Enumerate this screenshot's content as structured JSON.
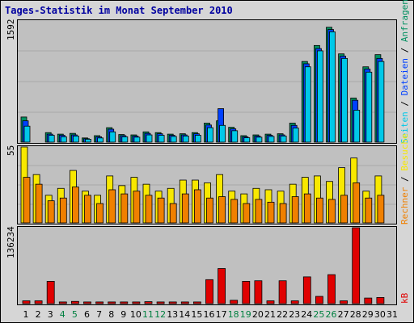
{
  "colors": {
    "frame_bg": "#d6d6d6",
    "plot_bg": "#c0c0c0",
    "grid": "#a8a8a8",
    "title": "#0000a0",
    "hits": "#009060",
    "files": "#0040ff",
    "pages": "#00c8e8",
    "visits": "#f8e800",
    "sites": "#f08000",
    "kbytes": "#e00000",
    "weekend": "#008040",
    "weekday": "#000000"
  },
  "chart_data": {
    "type": "bar",
    "title": "Tages-Statistik im Monat September 2010",
    "categories": [
      "1",
      "2",
      "3",
      "4",
      "5",
      "6",
      "7",
      "8",
      "9",
      "10",
      "11",
      "12",
      "13",
      "14",
      "15",
      "16",
      "17",
      "18",
      "19",
      "20",
      "21",
      "22",
      "23",
      "24",
      "25",
      "26",
      "27",
      "28",
      "29",
      "30",
      "31"
    ],
    "weekend_days": [
      "4",
      "5",
      "11",
      "12",
      "18",
      "19",
      "25",
      "26"
    ],
    "panels": [
      {
        "id": "top",
        "ymax_label": "1592",
        "ylim": [
          0,
          1592
        ],
        "gridlines": 3,
        "series": [
          {
            "name": "Anfragen",
            "values": [
              330,
              0,
              125,
              105,
              115,
              55,
              85,
              190,
              100,
              95,
              135,
              125,
              105,
              110,
              125,
              250,
              280,
              195,
              85,
              95,
              105,
              110,
              250,
              1060,
              1270,
              1510,
              1160,
              580,
              990,
              1150,
              0
            ]
          },
          {
            "name": "Dateien",
            "values": [
              280,
              0,
              105,
              90,
              95,
              45,
              70,
              170,
              85,
              80,
              115,
              110,
              90,
              95,
              110,
              225,
              440,
              175,
              70,
              80,
              90,
              95,
              220,
              1030,
              1230,
              1480,
              1130,
              550,
              960,
              1100,
              0
            ]
          },
          {
            "name": "Seiten",
            "values": [
              210,
              0,
              90,
              70,
              80,
              38,
              55,
              135,
              70,
              65,
              95,
              90,
              75,
              80,
              90,
              190,
              220,
              150,
              58,
              65,
              75,
              80,
              185,
              990,
              1200,
              1450,
              1100,
              420,
              920,
              1060,
              0
            ]
          }
        ]
      },
      {
        "id": "middle",
        "ymax_label": "55",
        "ylim": [
          0,
          55
        ],
        "gridlines": 3,
        "series": [
          {
            "name": "Besuche",
            "values": [
              55,
              35,
              20,
              25,
              38,
              23,
              20,
              34,
              27,
              33,
              28,
              23,
              25,
              31,
              31,
              29,
              35,
              23,
              21,
              25,
              24,
              23,
              28,
              33,
              34,
              30,
              40,
              47,
              23,
              34,
              0
            ]
          },
          {
            "name": "Rechner",
            "values": [
              33,
              28,
              16,
              18,
              26,
              20,
              14,
              24,
              21,
              23,
              20,
              18,
              14,
              21,
              24,
              18,
              19,
              17,
              14,
              17,
              15,
              14,
              19,
              21,
              18,
              17,
              20,
              29,
              18,
              20,
              0
            ]
          }
        ]
      },
      {
        "id": "bottom",
        "ymax_label": "136234",
        "ylim": [
          0,
          136234
        ],
        "gridlines": 0,
        "series": [
          {
            "name": "kB",
            "values": [
              5000,
              5000,
              40000,
              3000,
              4000,
              3000,
              3000,
              3000,
              3000,
              3000,
              3500,
              3000,
              3000,
              3000,
              3000,
              43000,
              63000,
              6000,
              40000,
              41000,
              5000,
              41000,
              5000,
              48000,
              13000,
              52000,
              5000,
              136234,
              10000,
              11000,
              0
            ]
          }
        ]
      }
    ]
  }
}
